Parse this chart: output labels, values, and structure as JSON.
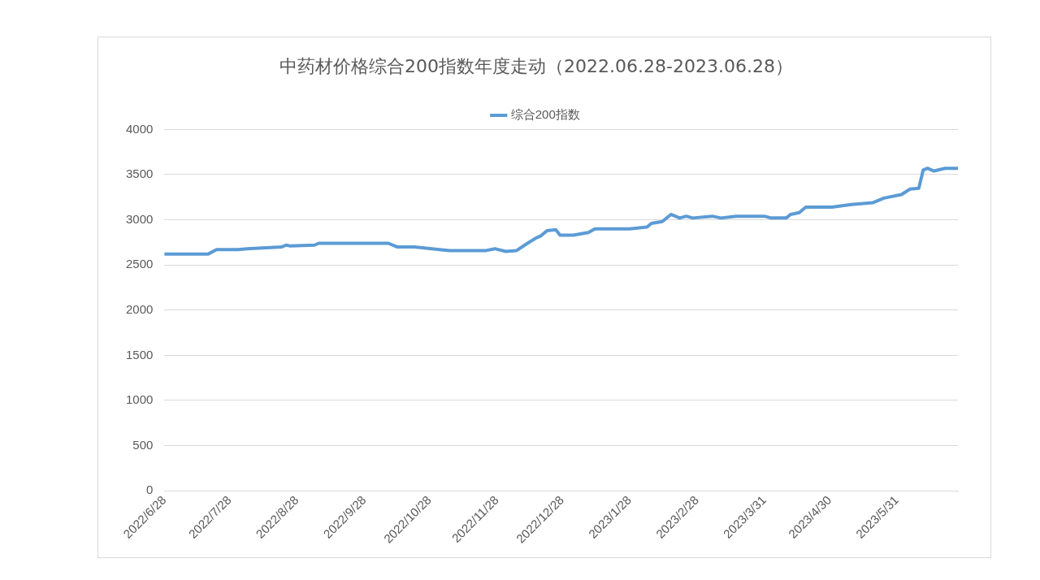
{
  "chart_data": {
    "type": "line",
    "title": "中药材价格综合200指数年度走动（2022.06.28-2023.06.28）",
    "x": [
      "2022-06-28",
      "2022-07-18",
      "2022-07-22",
      "2022-08-01",
      "2022-08-05",
      "2022-08-21",
      "2022-08-23",
      "2022-08-25",
      "2022-09-05",
      "2022-09-07",
      "2022-10-09",
      "2022-10-13",
      "2022-10-21",
      "2022-11-06",
      "2022-11-23",
      "2022-11-27",
      "2022-12-02",
      "2022-12-07",
      "2022-12-12",
      "2022-12-16",
      "2022-12-18",
      "2022-12-21",
      "2022-12-25",
      "2022-12-27",
      "2023-01-02",
      "2023-01-09",
      "2023-01-12",
      "2023-01-28",
      "2023-02-05",
      "2023-02-07",
      "2023-02-12",
      "2023-02-16",
      "2023-02-20",
      "2023-02-23",
      "2023-02-26",
      "2023-03-07",
      "2023-03-11",
      "2023-03-18",
      "2023-03-31",
      "2023-04-03",
      "2023-04-10",
      "2023-04-12",
      "2023-04-16",
      "2023-04-19",
      "2023-05-01",
      "2023-05-10",
      "2023-05-20",
      "2023-05-25",
      "2023-06-02",
      "2023-06-06",
      "2023-06-10",
      "2023-06-12",
      "2023-06-14",
      "2023-06-17",
      "2023-06-22",
      "2023-06-28"
    ],
    "series": [
      {
        "name": "综合200指数",
        "color": "#5b9bd5",
        "values": [
          2620,
          2620,
          2670,
          2670,
          2680,
          2700,
          2720,
          2710,
          2720,
          2740,
          2740,
          2700,
          2700,
          2660,
          2660,
          2680,
          2650,
          2660,
          2740,
          2800,
          2820,
          2880,
          2890,
          2830,
          2830,
          2860,
          2900,
          2900,
          2920,
          2960,
          2980,
          3060,
          3020,
          3040,
          3020,
          3040,
          3020,
          3040,
          3040,
          3020,
          3020,
          3060,
          3080,
          3140,
          3140,
          3170,
          3190,
          3240,
          3280,
          3340,
          3350,
          3550,
          3570,
          3540,
          3570,
          3570
        ]
      }
    ],
    "xlim": [
      "2022-06-28",
      "2023-06-28"
    ],
    "xticks": [
      {
        "value": "2022-06-28",
        "label": "2022/6/28"
      },
      {
        "value": "2022-07-28",
        "label": "2022/7/28"
      },
      {
        "value": "2022-08-28",
        "label": "2022/8/28"
      },
      {
        "value": "2022-09-28",
        "label": "2022/9/28"
      },
      {
        "value": "2022-10-28",
        "label": "2022/10/28"
      },
      {
        "value": "2022-11-28",
        "label": "2022/11/28"
      },
      {
        "value": "2022-12-28",
        "label": "2022/12/28"
      },
      {
        "value": "2023-01-28",
        "label": "2023/1/28"
      },
      {
        "value": "2023-02-28",
        "label": "2023/2/28"
      },
      {
        "value": "2023-03-31",
        "label": "2023/3/31"
      },
      {
        "value": "2023-04-30",
        "label": "2023/4/30"
      },
      {
        "value": "2023-05-31",
        "label": "2023/5/31"
      }
    ],
    "ylim": [
      0,
      4000
    ],
    "yticks": [
      0,
      500,
      1000,
      1500,
      2000,
      2500,
      3000,
      3500,
      4000
    ],
    "grid": "y",
    "legend": "top",
    "marker": "none",
    "line_style": "solid"
  }
}
